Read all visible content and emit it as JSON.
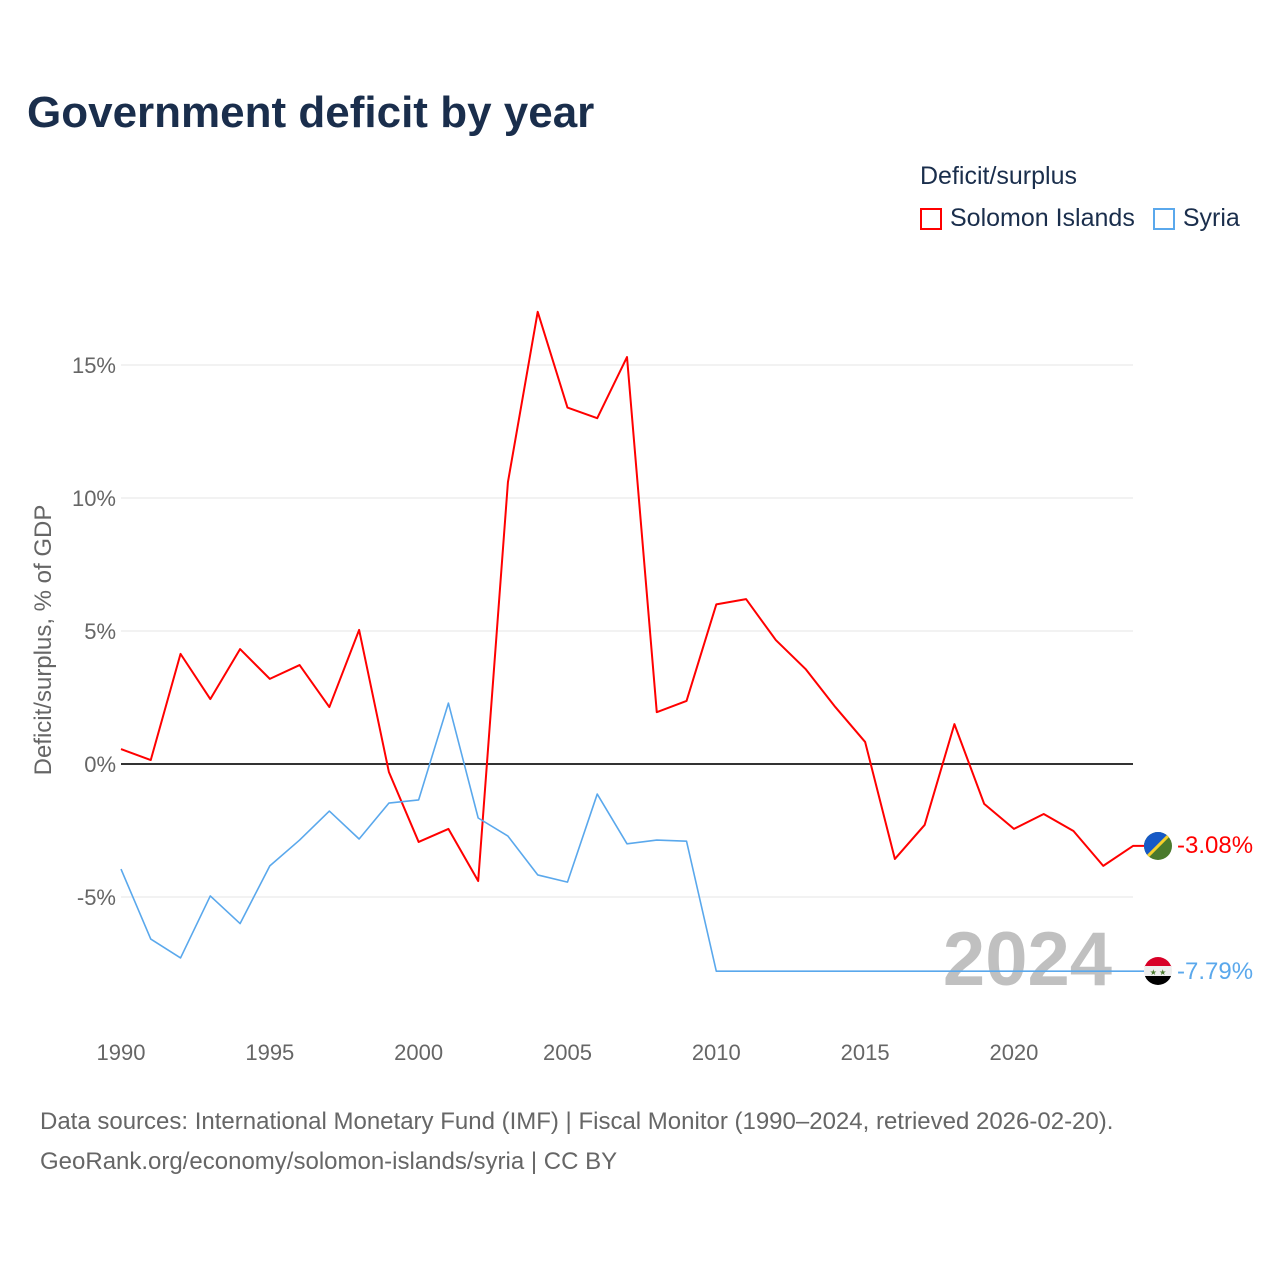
{
  "title": "Government deficit by year",
  "legend": {
    "title": "Deficit/surplus",
    "items": [
      {
        "name": "Solomon Islands",
        "color": "#ff0000"
      },
      {
        "name": "Syria",
        "color": "#5aa8ec"
      }
    ]
  },
  "highlight_year": "2024",
  "end_labels": {
    "solomon": "-3.08%",
    "syria": "-7.79%"
  },
  "sources": {
    "line1": "Data sources: International Monetary Fund (IMF) | Fiscal Monitor (1990–2024, retrieved 2026-02-20).",
    "line2": "GeoRank.org/economy/solomon-islands/syria | CC BY"
  },
  "chart_data": {
    "type": "line",
    "title": "Government deficit by year",
    "xlabel": "",
    "ylabel": "Deficit/surplus, % of GDP",
    "xlim": [
      1990,
      2024
    ],
    "ylim": [
      -9,
      18
    ],
    "yticks": [
      15,
      10,
      5,
      0,
      -5
    ],
    "ytick_labels": [
      "15%",
      "10%",
      "5%",
      "0%",
      "-5%"
    ],
    "xticks": [
      1990,
      1995,
      2000,
      2005,
      2010,
      2015,
      2020
    ],
    "xtick_labels": [
      "1990",
      "1995",
      "2000",
      "2005",
      "2010",
      "2015",
      "2020"
    ],
    "grid": true,
    "legend_position": "top-right",
    "x": [
      1990,
      1991,
      1992,
      1993,
      1994,
      1995,
      1996,
      1997,
      1998,
      1999,
      2000,
      2001,
      2002,
      2003,
      2004,
      2005,
      2006,
      2007,
      2008,
      2009,
      2010,
      2011,
      2012,
      2013,
      2014,
      2015,
      2016,
      2017,
      2018,
      2019,
      2020,
      2021,
      2022,
      2023,
      2024
    ],
    "series": [
      {
        "name": "Solomon Islands",
        "color": "#ff0000",
        "values": [
          0.56,
          0.15,
          4.14,
          2.44,
          4.32,
          3.2,
          3.72,
          2.14,
          5.04,
          -0.3,
          -2.93,
          -2.44,
          -4.4,
          10.6,
          17.0,
          13.4,
          13.0,
          15.3,
          1.95,
          2.37,
          6.0,
          6.2,
          4.66,
          3.57,
          2.14,
          0.83,
          -3.57,
          -2.29,
          1.5,
          -1.5,
          -2.44,
          -1.88,
          -2.52,
          -3.83,
          -3.08
        ]
      },
      {
        "name": "Syria",
        "color": "#5aa8ec",
        "values": [
          -3.95,
          -6.58,
          -7.29,
          -4.96,
          -6.0,
          -3.83,
          -2.86,
          -1.77,
          -2.82,
          -1.47,
          -1.35,
          2.29,
          -2.03,
          -2.71,
          -4.17,
          -4.44,
          -1.13,
          -3.0,
          -2.86,
          -2.9,
          -7.79,
          -7.79,
          -7.79,
          -7.79,
          -7.79,
          -7.79,
          -7.79,
          -7.79,
          -7.79,
          -7.79,
          -7.79,
          -7.79,
          -7.79,
          -7.79,
          -7.79
        ]
      }
    ]
  }
}
